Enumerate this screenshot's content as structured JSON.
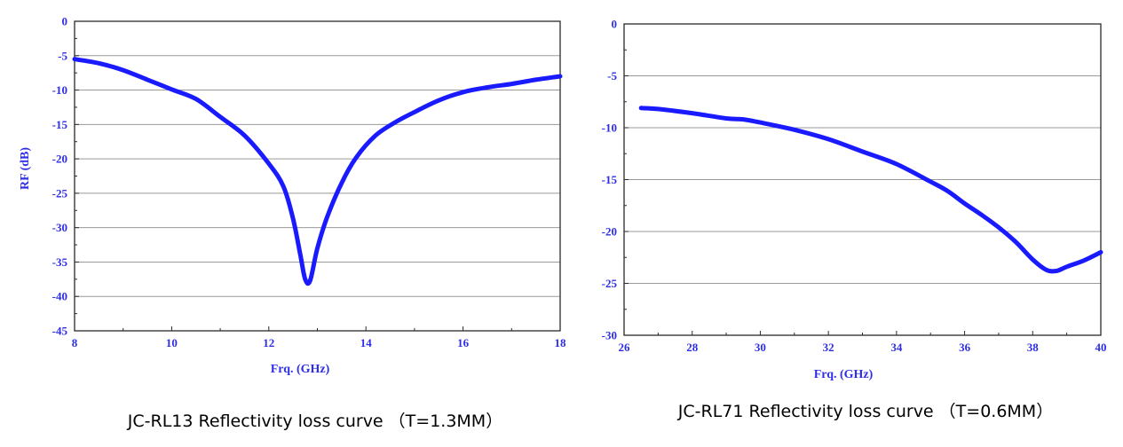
{
  "charts": [
    {
      "caption": "JC-RL13 Reflectivity loss curve （T=1.3MM）",
      "chart_data": {
        "type": "line",
        "xlabel": "Frq. (GHz)",
        "ylabel": "RF (dB)",
        "xlim": [
          8,
          18
        ],
        "ylim": [
          -45,
          0
        ],
        "xticks": [
          8,
          10,
          12,
          14,
          16,
          18
        ],
        "yticks": [
          0,
          -5,
          -10,
          -15,
          -20,
          -25,
          -30,
          -35,
          -40,
          -45
        ],
        "grid": "horizontal",
        "line_color": "#1a1aff",
        "series": [
          {
            "x": [
              8.0,
              8.5,
              9.0,
              9.5,
              10.0,
              10.5,
              11.0,
              11.5,
              12.0,
              12.3,
              12.5,
              12.65,
              12.75,
              12.85,
              13.0,
              13.2,
              13.5,
              13.8,
              14.2,
              14.6,
              15.0,
              15.5,
              16.0,
              16.5,
              17.0,
              17.5,
              18.0
            ],
            "y": [
              -5.5,
              -6.1,
              -7.1,
              -8.5,
              -9.9,
              -11.3,
              -13.9,
              -16.6,
              -20.7,
              -24.0,
              -28.7,
              -34.0,
              -37.5,
              -37.7,
              -33.0,
              -28.5,
              -23.5,
              -19.8,
              -16.6,
              -14.7,
              -13.2,
              -11.5,
              -10.3,
              -9.6,
              -9.1,
              -8.5,
              -8.0
            ]
          }
        ]
      }
    },
    {
      "caption": "JC-RL71 Reflectivity loss curve （T=0.6MM）",
      "chart_data": {
        "type": "line",
        "xlabel": "Frq. (GHz)",
        "ylabel": "",
        "xlim": [
          26,
          40
        ],
        "ylim": [
          -30,
          0
        ],
        "xticks": [
          26,
          28,
          30,
          32,
          34,
          36,
          38,
          40
        ],
        "yticks": [
          0,
          -5,
          -10,
          -15,
          -20,
          -25,
          -30
        ],
        "grid": "horizontal",
        "line_color": "#1a1aff",
        "series": [
          {
            "x": [
              26.5,
              27.0,
              28.0,
              29.0,
              29.5,
              30.0,
              31.0,
              32.0,
              33.0,
              34.0,
              35.0,
              35.5,
              36.0,
              36.5,
              37.0,
              37.5,
              38.0,
              38.4,
              38.7,
              39.0,
              39.5,
              40.0
            ],
            "y": [
              -8.1,
              -8.2,
              -8.6,
              -9.1,
              -9.2,
              -9.5,
              -10.2,
              -11.1,
              -12.3,
              -13.5,
              -15.2,
              -16.1,
              -17.3,
              -18.4,
              -19.6,
              -21.0,
              -22.7,
              -23.7,
              -23.8,
              -23.4,
              -22.8,
              -22.0
            ]
          }
        ]
      }
    }
  ]
}
